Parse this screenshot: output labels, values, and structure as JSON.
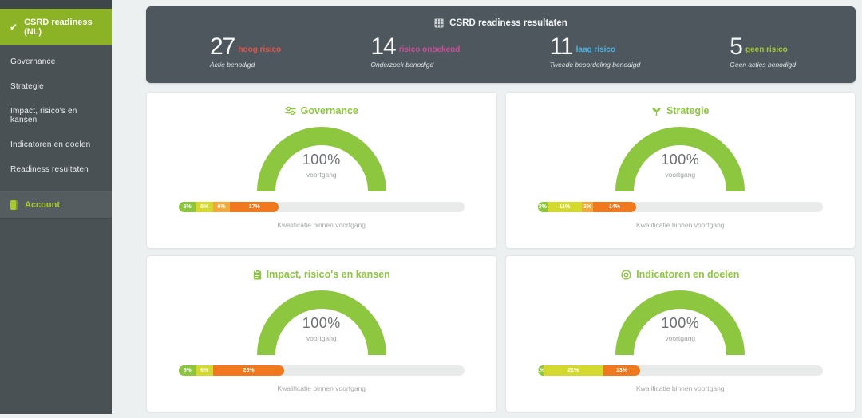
{
  "colors": {
    "accent_green": "#8dc63f",
    "sidebar_bg": "#4a5155",
    "sidebar_top": "#3f464a",
    "sidebar_header_bg": "#8cb226",
    "account_green": "#a9c930",
    "panel_bg": "#4d575d",
    "page_bg": "#edf0f0",
    "track": "#e9ebeb"
  },
  "icons": {
    "check": "✔"
  },
  "sidebar": {
    "header_label": "CSRD readiness (NL)",
    "items": [
      {
        "label": "Governance"
      },
      {
        "label": "Strategie"
      },
      {
        "label": "Impact, risico's en kansen"
      },
      {
        "label": "Indicatoren en doelen"
      },
      {
        "label": "Readiness resultaten"
      }
    ],
    "account_label": "Account"
  },
  "header": {
    "title": "CSRD readiness resultaten",
    "stats": [
      {
        "value": "27",
        "label": "hoog risico",
        "sublabel": "Actie benodigd",
        "color": "#e2574c"
      },
      {
        "value": "14",
        "label": "risico onbekend",
        "sublabel": "Onderzoek benodigd",
        "color": "#cf4d9b"
      },
      {
        "value": "11",
        "label": "laag risico",
        "sublabel": "Tweede beoordeling benodigd",
        "color": "#49b4e6"
      },
      {
        "value": "5",
        "label": "geen risico",
        "sublabel": "Geen acties benodigd",
        "color": "#a2ca37"
      }
    ]
  },
  "cards": [
    {
      "title": "Governance",
      "icon": "sliders-icon",
      "gauge": {
        "value": "100%",
        "label": "voortgang"
      },
      "caption": "Kwalificatie binnen voortgang",
      "segments": [
        {
          "label": "6%",
          "width": 6,
          "color": "#8cc63f"
        },
        {
          "label": "6%",
          "width": 6,
          "color": "#d4d92f"
        },
        {
          "label": "6%",
          "width": 6,
          "color": "#f2a93b"
        },
        {
          "label": "17%",
          "width": 17,
          "color": "#f0781e"
        }
      ]
    },
    {
      "title": "Strategie",
      "icon": "seedling-icon",
      "gauge": {
        "value": "100%",
        "label": "voortgang"
      },
      "caption": "Kwalificatie binnen voortgang",
      "segments": [
        {
          "label": "3%",
          "width": 3.5,
          "color": "#8cc63f"
        },
        {
          "label": "11%",
          "width": 12,
          "color": "#d4d92f"
        },
        {
          "label": "3%",
          "width": 4,
          "color": "#f2a93b"
        },
        {
          "label": "14%",
          "width": 15,
          "color": "#f0781e"
        }
      ]
    },
    {
      "title": "Impact, risico's en kansen",
      "icon": "clipboard-icon",
      "gauge": {
        "value": "100%",
        "label": "voortgang"
      },
      "caption": "Kwalificatie binnen voortgang",
      "segments": [
        {
          "label": "6%",
          "width": 6,
          "color": "#8cc63f"
        },
        {
          "label": "6%",
          "width": 6,
          "color": "#d4d92f"
        },
        {
          "label": "25%",
          "width": 25,
          "color": "#f0781e"
        }
      ]
    },
    {
      "title": "Indicatoren en doelen",
      "icon": "target-icon",
      "gauge": {
        "value": "100%",
        "label": "voortgang"
      },
      "caption": "Kwalificatie binnen voortgang",
      "segments": [
        {
          "label": "1%",
          "width": 2,
          "color": "#8cc63f"
        },
        {
          "label": "21%",
          "width": 21,
          "color": "#d4d92f"
        },
        {
          "label": "13%",
          "width": 13,
          "color": "#f0781e"
        }
      ]
    }
  ]
}
